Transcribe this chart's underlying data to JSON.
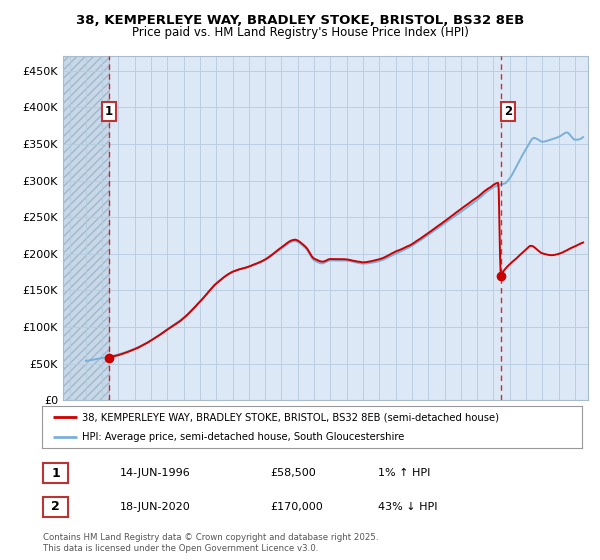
{
  "title_line1": "38, KEMPERLEYE WAY, BRADLEY STOKE, BRISTOL, BS32 8EB",
  "title_line2": "Price paid vs. HM Land Registry's House Price Index (HPI)",
  "background_color": "#ffffff",
  "plot_bg_color": "#dce8f5",
  "hatch_region_color": "#c8d8e8",
  "grid_color": "#b8cce0",
  "red_line_color": "#cc0000",
  "blue_line_color": "#7ab0d8",
  "dashed_line_color": "#cc0000",
  "point1_x": 1996.45,
  "point1_y": 58500,
  "point2_x": 2020.45,
  "point2_y": 170000,
  "annotation1_label": "1",
  "annotation2_label": "2",
  "xmin": 1993.6,
  "xmax": 2025.8,
  "ymin": 0,
  "ymax": 470000,
  "yticks": [
    0,
    50000,
    100000,
    150000,
    200000,
    250000,
    300000,
    350000,
    400000,
    450000
  ],
  "ytick_labels": [
    "£0",
    "£50K",
    "£100K",
    "£150K",
    "£200K",
    "£250K",
    "£300K",
    "£350K",
    "£400K",
    "£450K"
  ],
  "legend_line1": "38, KEMPERLEYE WAY, BRADLEY STOKE, BRISTOL, BS32 8EB (semi-detached house)",
  "legend_line2": "HPI: Average price, semi-detached house, South Gloucestershire",
  "table_row1": [
    "1",
    "14-JUN-1996",
    "£58,500",
    "1% ↑ HPI"
  ],
  "table_row2": [
    "2",
    "18-JUN-2020",
    "£170,000",
    "43% ↓ HPI"
  ],
  "footnote": "Contains HM Land Registry data © Crown copyright and database right 2025.\nThis data is licensed under the Open Government Licence v3.0.",
  "hatch_end_year": 1996.45
}
